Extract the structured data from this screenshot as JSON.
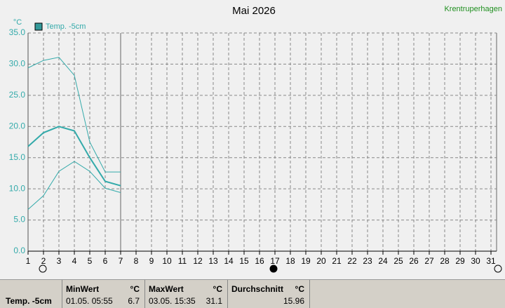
{
  "chart_data": {
    "type": "line",
    "title": "Mai 2026",
    "station": "Krentruperhagen",
    "y_unit": "°C",
    "x": [
      1,
      2,
      3,
      4,
      5,
      6,
      7
    ],
    "series": [
      {
        "name": "Temp. -5cm",
        "color": "#33aaaa",
        "width": 2,
        "values": [
          16.8,
          19.0,
          20.0,
          19.3,
          15.0,
          11.2,
          10.5
        ]
      },
      {
        "color": "#33aaaa",
        "width": 1,
        "values": [
          29.4,
          30.6,
          31.1,
          28.2,
          17.5,
          12.7,
          12.7
        ]
      },
      {
        "color": "#33aaaa",
        "width": 1,
        "values": [
          6.7,
          8.9,
          12.8,
          14.4,
          12.8,
          10.1,
          9.4
        ]
      }
    ],
    "xlim": [
      1,
      31
    ],
    "xticks": [
      1,
      2,
      3,
      4,
      5,
      6,
      7,
      8,
      9,
      10,
      11,
      12,
      13,
      14,
      15,
      16,
      17,
      18,
      19,
      20,
      21,
      22,
      23,
      24,
      25,
      26,
      27,
      28,
      29,
      30,
      31
    ],
    "ylim": [
      0,
      35
    ],
    "yticks": [
      {
        "value": 0,
        "label": "0.0"
      },
      {
        "value": 5,
        "label": "5.0"
      },
      {
        "value": 10,
        "label": "10.0"
      },
      {
        "value": 15,
        "label": "15.0"
      },
      {
        "value": 20,
        "label": "20.0"
      },
      {
        "value": 25,
        "label": "25.0"
      },
      {
        "value": 30,
        "label": "30.0"
      },
      {
        "value": 35,
        "label": "35.0"
      }
    ],
    "grid": true,
    "current_day": 7
  },
  "footer": {
    "sensor": "Temp. -5cm",
    "min": {
      "title": "MinWert",
      "unit": "°C",
      "time": "01.05.  05:55",
      "value": "6.7"
    },
    "max": {
      "title": "MaxWert",
      "unit": "°C",
      "time": "03.05.  15:35",
      "value": "31.1"
    },
    "avg": {
      "title": "Durchschnitt",
      "unit": "°C",
      "value": "15.96"
    }
  }
}
